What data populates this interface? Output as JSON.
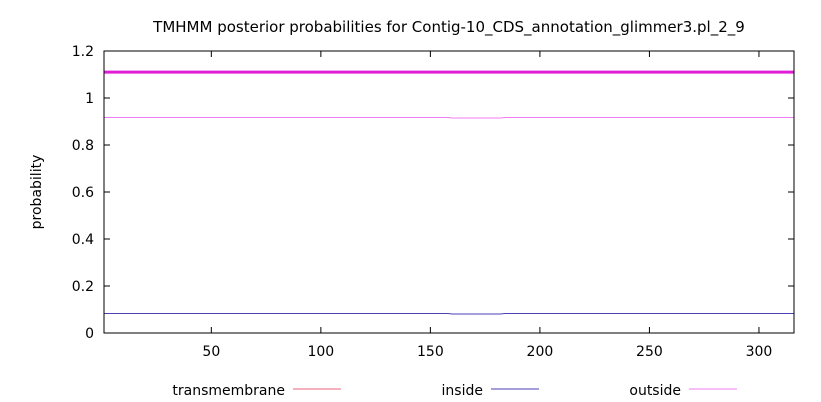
{
  "chart_data": {
    "type": "line",
    "title": "TMHMM posterior probabilities for Contig-10_CDS_annotation_glimmer3.pl_2_9",
    "xlabel": "",
    "ylabel": "probability",
    "xlim": [
      1,
      316
    ],
    "ylim": [
      0,
      1.2
    ],
    "x_ticks": [
      50,
      100,
      150,
      200,
      250,
      300
    ],
    "y_ticks": [
      0,
      0.2,
      0.4,
      0.6,
      0.8,
      1,
      1.2
    ],
    "x_tick_labels": [
      "50",
      "100",
      "150",
      "200",
      "250",
      "300"
    ],
    "y_tick_labels": [
      "0",
      "0.2",
      "0.4",
      "0.6",
      "0.8",
      "1",
      "1.2"
    ],
    "grid": false,
    "legend_position": "bottom",
    "series": [
      {
        "name": "transmembrane",
        "color": "#e8607a",
        "x": [
          1,
          316
        ],
        "y": [
          0,
          0
        ]
      },
      {
        "name": "inside",
        "color": "#4a3fb5",
        "x": [
          1,
          158,
          160,
          182,
          184,
          316
        ],
        "y": [
          0.083,
          0.083,
          0.081,
          0.081,
          0.083,
          0.083
        ]
      },
      {
        "name": "outside",
        "color": "#f07ef0",
        "x": [
          1,
          158,
          160,
          182,
          184,
          316
        ],
        "y": [
          0.917,
          0.917,
          0.915,
          0.915,
          0.917,
          0.917
        ]
      }
    ],
    "annotations": [
      {
        "type": "hline",
        "y": 1.11,
        "color": "#e01ed8",
        "label": ""
      }
    ]
  }
}
